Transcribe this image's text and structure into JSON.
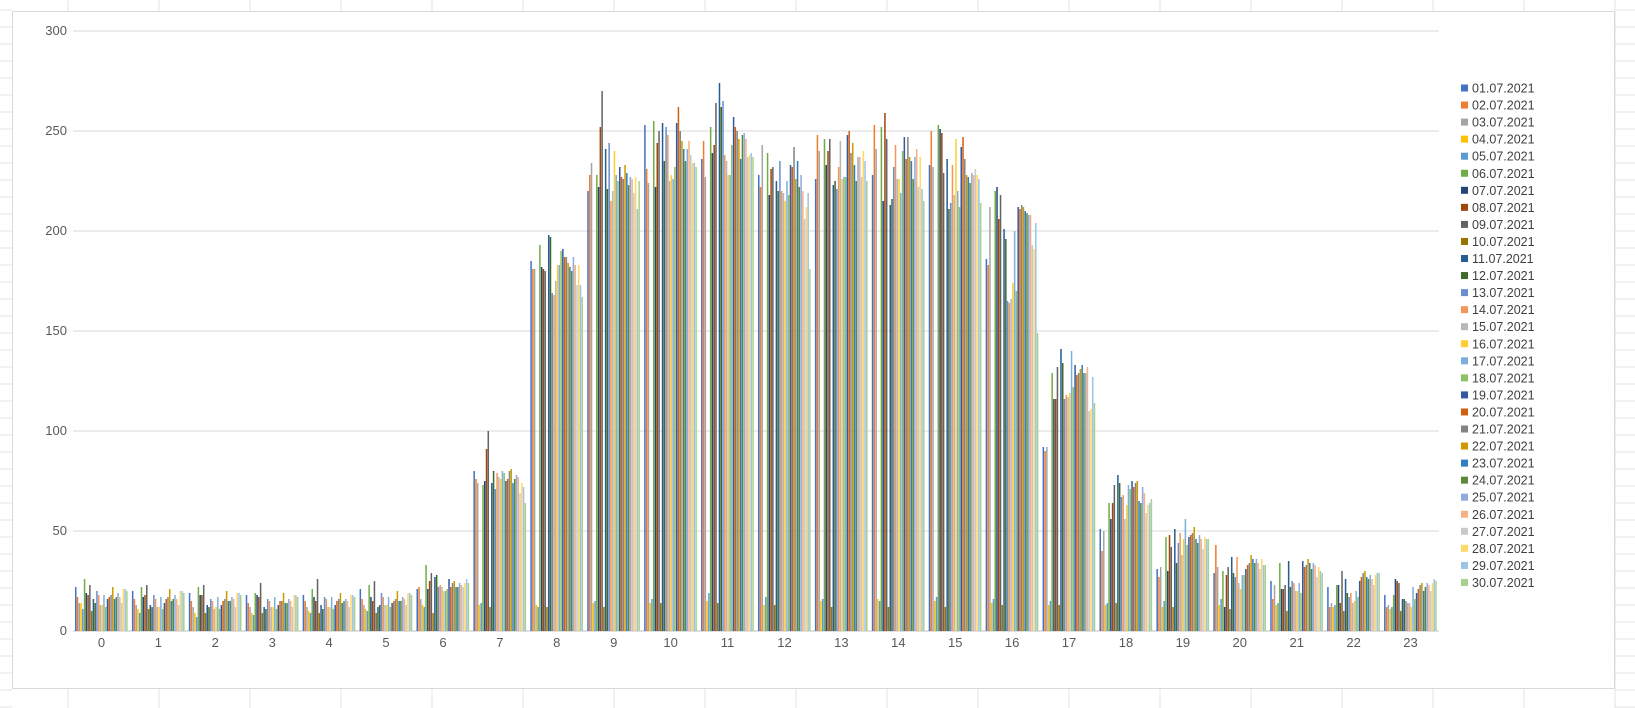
{
  "chart_data": {
    "type": "bar",
    "title": "",
    "xlabel": "",
    "ylabel": "",
    "ylim": [
      0,
      300
    ],
    "yticks": [
      0,
      50,
      100,
      150,
      200,
      250,
      300
    ],
    "grid": true,
    "legend_position": "right",
    "categories": [
      "0",
      "1",
      "2",
      "3",
      "4",
      "5",
      "6",
      "7",
      "8",
      "9",
      "10",
      "11",
      "12",
      "13",
      "14",
      "15",
      "16",
      "17",
      "18",
      "19",
      "20",
      "21",
      "22",
      "23"
    ],
    "colors": [
      "#4472c4",
      "#ed7d31",
      "#a5a5a5",
      "#ffc000",
      "#5b9bd5",
      "#70ad47",
      "#264478",
      "#9e480e",
      "#636363",
      "#997300",
      "#255e91",
      "#43682b",
      "#698ed0",
      "#f1975a",
      "#b7b7b7",
      "#ffcd33",
      "#7cafdd",
      "#8cc168",
      "#335aa1",
      "#d26012",
      "#848484",
      "#cc9a00",
      "#327dc2",
      "#5a8a39",
      "#8faadc",
      "#f4b183",
      "#c9c9c9",
      "#ffd966",
      "#9dc3e6",
      "#a9d18e"
    ],
    "series": [
      {
        "name": "01.07.2021",
        "values": [
          22,
          20,
          19,
          18,
          18,
          21,
          21,
          80,
          185,
          220,
          253,
          236,
          228,
          226,
          228,
          233,
          186,
          92,
          51,
          31,
          29,
          25,
          22,
          18
        ]
      },
      {
        "name": "02.07.2021",
        "values": [
          17,
          16,
          15,
          14,
          15,
          16,
          22,
          76,
          181,
          228,
          231,
          245,
          222,
          248,
          253,
          250,
          183,
          90,
          40,
          27,
          43,
          16,
          12,
          12
        ]
      },
      {
        "name": "03.07.2021",
        "values": [
          14,
          13,
          12,
          12,
          12,
          13,
          16,
          74,
          181,
          234,
          224,
          227,
          243,
          240,
          241,
          232,
          212,
          92,
          50,
          32,
          32,
          23,
          14,
          13
        ]
      },
      {
        "name": "04.07.2021",
        "values": [
          14,
          11,
          9,
          9,
          10,
          11,
          13,
          13,
          13,
          14,
          14,
          15,
          13,
          15,
          16,
          15,
          14,
          13,
          13,
          12,
          13,
          13,
          12,
          11
        ]
      },
      {
        "name": "05.07.2021",
        "values": [
          11,
          9,
          7,
          8,
          9,
          10,
          12,
          14,
          12,
          15,
          16,
          19,
          17,
          16,
          15,
          17,
          16,
          15,
          14,
          15,
          16,
          14,
          13,
          12
        ]
      },
      {
        "name": "06.07.2021",
        "values": [
          26,
          22,
          22,
          19,
          21,
          23,
          33,
          73,
          193,
          228,
          255,
          252,
          239,
          246,
          252,
          253,
          220,
          129,
          64,
          47,
          30,
          34,
          23,
          18
        ]
      },
      {
        "name": "07.07.2021",
        "values": [
          19,
          17,
          18,
          18,
          17,
          17,
          21,
          75,
          182,
          222,
          222,
          239,
          218,
          233,
          215,
          251,
          222,
          116,
          56,
          30,
          12,
          21,
          23,
          26
        ]
      },
      {
        "name": "08.07.2021",
        "values": [
          18,
          18,
          18,
          17,
          15,
          15,
          25,
          91,
          181,
          252,
          244,
          243,
          231,
          240,
          259,
          249,
          206,
          116,
          64,
          48,
          28,
          21,
          14,
          25
        ]
      },
      {
        "name": "09.07.2021",
        "values": [
          23,
          23,
          23,
          24,
          26,
          25,
          29,
          100,
          180,
          270,
          250,
          264,
          232,
          246,
          246,
          229,
          218,
          132,
          73,
          42,
          32,
          23,
          30,
          24
        ]
      },
      {
        "name": "10.07.2021",
        "values": [
          10,
          11,
          9,
          9,
          9,
          9,
          9,
          12,
          12,
          12,
          14,
          14,
          13,
          12,
          12,
          12,
          13,
          13,
          14,
          12,
          11,
          10,
          10,
          10
        ]
      },
      {
        "name": "11.07.2021",
        "values": [
          16,
          13,
          13,
          12,
          13,
          12,
          27,
          74,
          198,
          241,
          254,
          274,
          225,
          223,
          213,
          236,
          201,
          141,
          78,
          51,
          37,
          35,
          26,
          16
        ]
      },
      {
        "name": "12.07.2021",
        "values": [
          14,
          12,
          12,
          11,
          11,
          13,
          28,
          80,
          197,
          221,
          235,
          262,
          220,
          225,
          216,
          211,
          196,
          134,
          74,
          34,
          29,
          22,
          19,
          16
        ]
      },
      {
        "name": "13.07.2021",
        "values": [
          20,
          18,
          16,
          16,
          17,
          19,
          22,
          71,
          169,
          244,
          252,
          265,
          235,
          221,
          232,
          214,
          165,
          116,
          67,
          44,
          27,
          25,
          17,
          15
        ]
      },
      {
        "name": "14.07.2021",
        "values": [
          18,
          16,
          15,
          15,
          16,
          17,
          23,
          79,
          168,
          215,
          248,
          238,
          220,
          232,
          243,
          233,
          164,
          118,
          68,
          49,
          37,
          24,
          19,
          14
        ]
      },
      {
        "name": "15.07.2021",
        "values": [
          13,
          12,
          11,
          12,
          12,
          13,
          22,
          77,
          175,
          220,
          225,
          235,
          219,
          245,
          226,
          218,
          166,
          117,
          56,
          38,
          24,
          20,
          14,
          14
        ]
      },
      {
        "name": "16.07.2021",
        "values": [
          13,
          12,
          12,
          12,
          12,
          13,
          20,
          76,
          183,
          240,
          228,
          228,
          215,
          226,
          226,
          246,
          174,
          119,
          63,
          46,
          21,
          20,
          15,
          12
        ]
      },
      {
        "name": "17.07.2021",
        "values": [
          18,
          17,
          17,
          17,
          17,
          17,
          20,
          80,
          183,
          228,
          226,
          228,
          225,
          227,
          219,
          220,
          200,
          140,
          73,
          56,
          28,
          24,
          20,
          22
        ]
      },
      {
        "name": "18.07.2021",
        "values": [
          12,
          11,
          11,
          11,
          11,
          12,
          21,
          79,
          190,
          225,
          232,
          243,
          218,
          227,
          240,
          212,
          170,
          122,
          71,
          43,
          28,
          19,
          17,
          16
        ]
      },
      {
        "name": "19.07.2021",
        "values": [
          16,
          14,
          13,
          13,
          13,
          14,
          26,
          75,
          191,
          232,
          254,
          257,
          233,
          248,
          247,
          242,
          212,
          133,
          75,
          47,
          31,
          35,
          25,
          19
        ]
      },
      {
        "name": "20.07.2021",
        "values": [
          17,
          16,
          15,
          15,
          15,
          15,
          22,
          76,
          187,
          227,
          262,
          252,
          232,
          250,
          236,
          247,
          211,
          128,
          72,
          48,
          33,
          32,
          27,
          21
        ]
      },
      {
        "name": "21.07.2021",
        "values": [
          18,
          17,
          16,
          15,
          16,
          16,
          24,
          80,
          187,
          226,
          250,
          250,
          242,
          239,
          247,
          236,
          213,
          129,
          74,
          49,
          34,
          33,
          29,
          23
        ]
      },
      {
        "name": "22.07.2021",
        "values": [
          22,
          21,
          20,
          19,
          19,
          20,
          25,
          81,
          184,
          233,
          245,
          246,
          226,
          244,
          237,
          228,
          212,
          131,
          75,
          52,
          38,
          36,
          30,
          24
        ]
      },
      {
        "name": "23.07.2021",
        "values": [
          16,
          15,
          15,
          14,
          14,
          15,
          22,
          74,
          182,
          229,
          241,
          236,
          235,
          233,
          235,
          227,
          210,
          133,
          65,
          46,
          36,
          34,
          27,
          20
        ]
      },
      {
        "name": "24.07.2021",
        "values": [
          17,
          16,
          15,
          14,
          15,
          15,
          22,
          76,
          180,
          223,
          235,
          248,
          222,
          225,
          226,
          224,
          209,
          129,
          64,
          44,
          34,
          31,
          26,
          22
        ]
      },
      {
        "name": "25.07.2021",
        "values": [
          19,
          18,
          17,
          16,
          16,
          17,
          24,
          78,
          187,
          227,
          241,
          249,
          228,
          237,
          237,
          229,
          208,
          129,
          72,
          48,
          36,
          34,
          28,
          24
        ]
      },
      {
        "name": "26.07.2021",
        "values": [
          17,
          16,
          16,
          15,
          15,
          16,
          23,
          77,
          183,
          226,
          245,
          246,
          220,
          237,
          241,
          228,
          208,
          132,
          69,
          46,
          34,
          33,
          26,
          23
        ]
      },
      {
        "name": "27.07.2021",
        "values": [
          14,
          13,
          12,
          12,
          12,
          13,
          22,
          69,
          173,
          219,
          238,
          237,
          206,
          227,
          222,
          231,
          193,
          110,
          59,
          41,
          31,
          27,
          23,
          20
        ]
      },
      {
        "name": "28.07.2021",
        "values": [
          21,
          20,
          19,
          18,
          18,
          19,
          24,
          74,
          183,
          227,
          234,
          238,
          212,
          240,
          237,
          228,
          191,
          111,
          63,
          47,
          36,
          32,
          28,
          24
        ]
      },
      {
        "name": "29.07.2021",
        "values": [
          21,
          20,
          19,
          18,
          18,
          19,
          26,
          72,
          173,
          211,
          234,
          239,
          219,
          235,
          221,
          226,
          204,
          127,
          64,
          46,
          33,
          30,
          29,
          26
        ]
      },
      {
        "name": "30.07.2021",
        "values": [
          20,
          19,
          18,
          17,
          17,
          18,
          24,
          64,
          167,
          225,
          232,
          237,
          181,
          225,
          215,
          214,
          149,
          114,
          66,
          46,
          33,
          29,
          29,
          25
        ]
      }
    ]
  }
}
